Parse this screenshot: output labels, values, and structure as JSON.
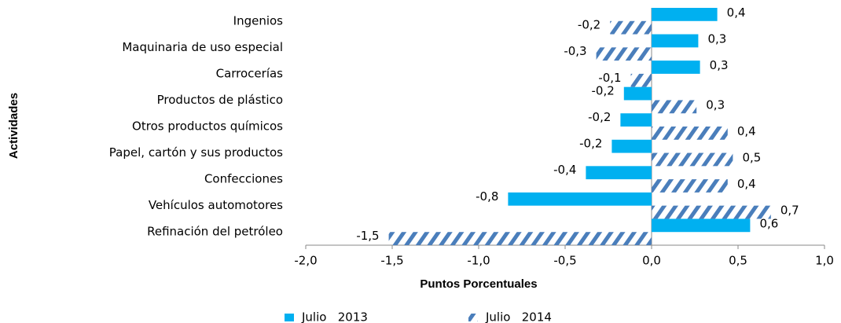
{
  "chart_data": {
    "type": "hbar",
    "categories": [
      "Ingenios",
      "Maquinaria de uso especial",
      "Carrocerías",
      "Productos de plástico",
      "Otros productos químicos",
      "Papel, cartón y sus productos",
      "Confecciones",
      "Vehículos automotores",
      "Refinación del petróleo"
    ],
    "series": [
      {
        "name": "Julio   2013",
        "color": "#00b0f0",
        "pattern": "solid",
        "values": [
          0.38,
          0.27,
          0.28,
          -0.16,
          -0.18,
          -0.23,
          -0.38,
          -0.83,
          0.57
        ],
        "value_labels": [
          "0,4",
          "0,3",
          "0,3",
          "-0,2",
          "-0,2",
          "-0,2",
          "-0,4",
          "-0,8",
          "0,6"
        ]
      },
      {
        "name": "Julio   2014",
        "color": "#4a7ebb",
        "pattern": "hatch",
        "values": [
          -0.24,
          -0.32,
          -0.12,
          0.26,
          0.44,
          0.47,
          0.44,
          0.69,
          -1.52
        ],
        "value_labels": [
          "-0,2",
          "-0,3",
          "-0,1",
          "0,3",
          "0,4",
          "0,5",
          "0,4",
          "0,7",
          "-1,5"
        ]
      }
    ],
    "xlim": [
      -2.0,
      1.0
    ],
    "xticks": [
      {
        "value": -2.0,
        "label": "-2,0"
      },
      {
        "value": -1.5,
        "label": "-1,5"
      },
      {
        "value": -1.0,
        "label": "-1,0"
      },
      {
        "value": -0.5,
        "label": "-0,5"
      },
      {
        "value": 0.0,
        "label": "0,0"
      },
      {
        "value": 0.5,
        "label": "0,5"
      },
      {
        "value": 1.0,
        "label": "1,0"
      }
    ],
    "xlabel": "Puntos Porcentuales",
    "ylabel": "Actividades",
    "legend": "bottom"
  }
}
